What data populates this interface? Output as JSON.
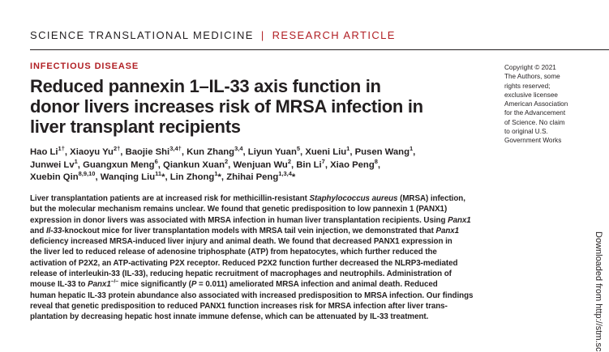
{
  "journal": {
    "name": "SCIENCE TRANSLATIONAL MEDICINE",
    "separator": "|",
    "section": "RESEARCH ARTICLE"
  },
  "category": "INFECTIOUS DISEASE",
  "title_lines": [
    "Reduced pannexin 1–IL-33 axis function in",
    "donor livers increases risk of MRSA infection in",
    "liver transplant recipients"
  ],
  "authors": {
    "line1": [
      {
        "name": "Hao Li",
        "sup": "1†",
        "sep": ", "
      },
      {
        "name": "Xiaoyu Yu",
        "sup": "2†",
        "sep": ", "
      },
      {
        "name": "Baojie Shi",
        "sup": "3,4†",
        "sep": ", "
      },
      {
        "name": "Kun Zhang",
        "sup": "3,4",
        "sep": ", "
      },
      {
        "name": "Liyun Yuan",
        "sup": "5",
        "sep": ", "
      },
      {
        "name": "Xueni Liu",
        "sup": "1",
        "sep": ", "
      },
      {
        "name": "Pusen Wang",
        "sup": "1",
        "sep": ","
      }
    ],
    "line2": [
      {
        "name": "Junwei Lv",
        "sup": "1",
        "sep": ", "
      },
      {
        "name": "Guangxun Meng",
        "sup": "6",
        "sep": ", "
      },
      {
        "name": "Qiankun Xuan",
        "sup": "2",
        "sep": ", "
      },
      {
        "name": "Wenjuan Wu",
        "sup": "2",
        "sep": ", "
      },
      {
        "name": "Bin Li",
        "sup": "7",
        "sep": ", "
      },
      {
        "name": "Xiao Peng",
        "sup": "8",
        "sep": ","
      }
    ],
    "line3": [
      {
        "name": "Xuebin Qin",
        "sup": "8,9,10",
        "sep": ", "
      },
      {
        "name": "Wanqing Liu",
        "sup": "11",
        "sep": "*, "
      },
      {
        "name": "Lin Zhong",
        "sup": "1",
        "sep": "*, "
      },
      {
        "name": "Zhihai Peng",
        "sup": "1,3,4",
        "sep": "*"
      }
    ]
  },
  "copyright_lines": [
    "Copyright © 2021",
    "The Authors, some",
    "rights reserved;",
    "exclusive licensee",
    "American Association",
    "for the Advancement",
    "of Science. No claim",
    "to original U.S.",
    "Government Works"
  ],
  "abstract": {
    "l1a": "Liver transplantation patients are at increased risk for methicillin-resistant ",
    "l1i": "Staphylococcus aureus",
    "l1b": " (MRSA) infection,",
    "l2": "but the molecular mechanism remains unclear. We found that genetic predisposition to low pannexin 1 (PANX1)",
    "l3a": "expression in donor livers was associated with MRSA infection in human liver transplantation recipients. Using ",
    "l3i": "Panx1",
    "l4a": "and ",
    "l4i": "Il-33",
    "l4b": "-knockout mice for liver transplantation models with MRSA tail vein injection, we demonstrated that ",
    "l4i2": "Panx1",
    "l5": "deficiency increased MRSA-induced liver injury and animal death. We found that decreased PANX1 expression in",
    "l6": "the liver led to reduced release of adenosine triphosphate (ATP) from hepatocytes, which further reduced the",
    "l7": "activation of P2X2, an ATP-activating P2X receptor. Reduced P2X2 function further decreased the NLRP3-mediated",
    "l8": "release of interleukin-33 (IL-33), reducing hepatic recruitment of macrophages and neutrophils. Administration of",
    "l9a": "mouse IL-33 to ",
    "l9i": "Panx1",
    "l9sup": "−/−",
    "l9b": " mice significantly (",
    "l9p": "P",
    "l9c": " = 0.011) ameliorated MRSA infection and animal death. Reduced",
    "l10": "human hepatic IL-33 protein abundance also associated with increased predisposition to MRSA infection. Our findings",
    "l11": "reveal that genetic predisposition to reduced PANX1 function increases risk for MRSA infection after liver trans-",
    "l12": "plantation by decreasing hepatic host innate immune defense, which can be attenuated by IL-33 treatment."
  },
  "side_note": "Downloaded from http://stm.sc"
}
